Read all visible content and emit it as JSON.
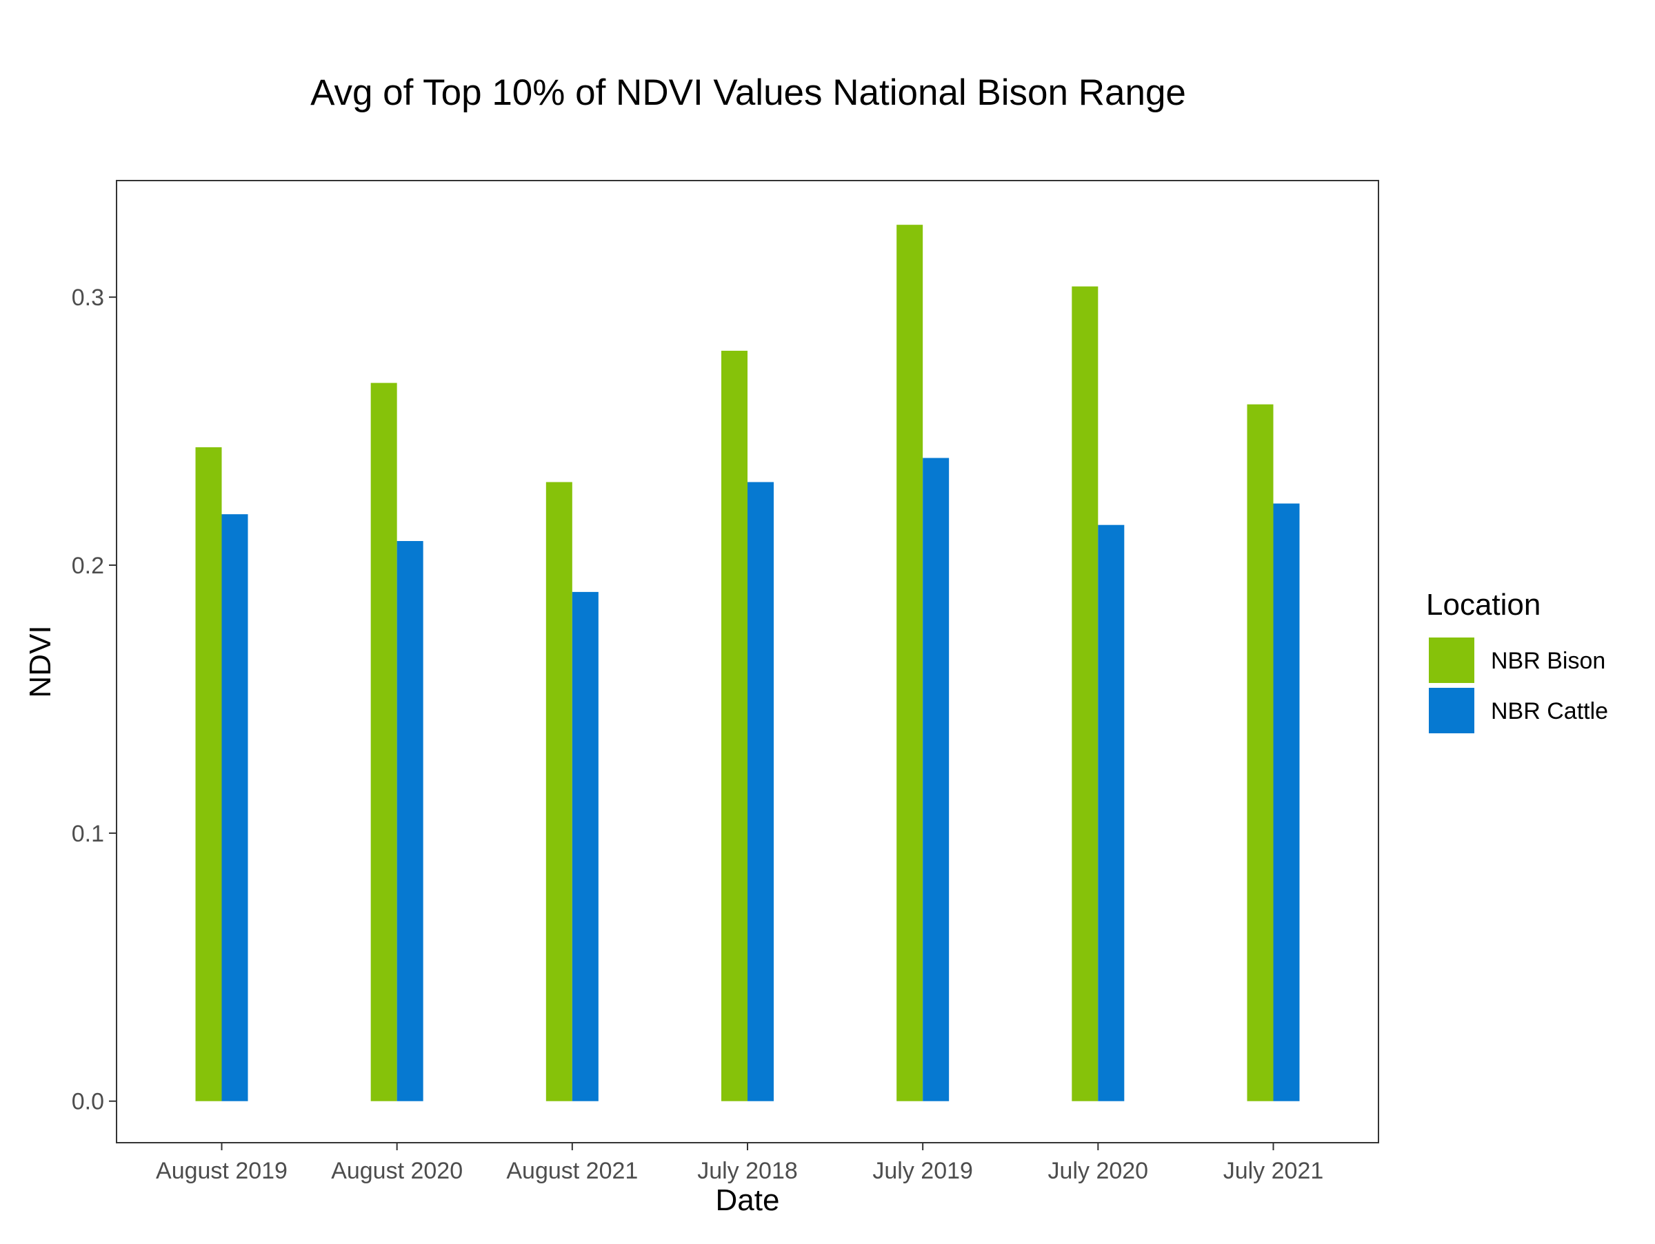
{
  "chart_data": {
    "type": "bar",
    "title": "Avg of Top 10% of NDVI Values National Bison Range",
    "xlabel": "Date",
    "ylabel": "NDVI",
    "categories": [
      "August 2019",
      "August 2020",
      "August 2021",
      "July 2018",
      "July 2019",
      "July 2020",
      "July 2021"
    ],
    "series": [
      {
        "name": "NBR Bison",
        "color": "#86c20a",
        "values": [
          0.244,
          0.268,
          0.231,
          0.28,
          0.327,
          0.304,
          0.26
        ]
      },
      {
        "name": "NBR Cattle",
        "color": "#0679d1",
        "values": [
          0.219,
          0.209,
          0.19,
          0.231,
          0.24,
          0.215,
          0.223
        ]
      }
    ],
    "ylim": [
      -0.0155,
      0.3435
    ],
    "yticks": [
      0.0,
      0.1,
      0.2,
      0.3
    ],
    "ytick_labels": [
      "0.0",
      "0.1",
      "0.2",
      "0.3"
    ],
    "grid": false,
    "legend": {
      "title": "Location",
      "position": "right"
    }
  }
}
